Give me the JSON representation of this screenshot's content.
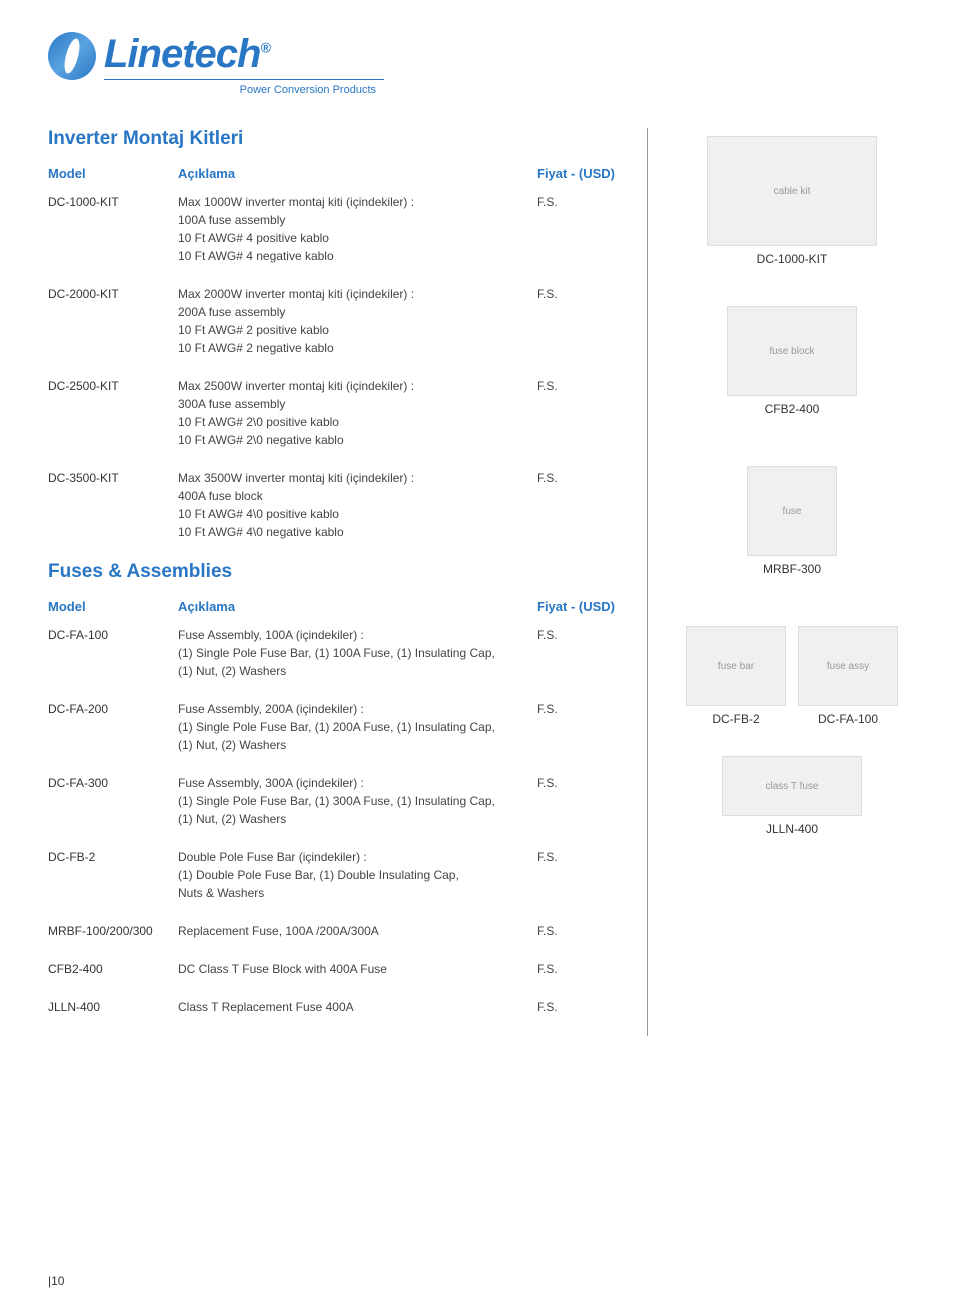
{
  "logo": {
    "name": "Linetech",
    "reg": "®",
    "tagline": "Power Conversion Products"
  },
  "section1": {
    "title": "Inverter Montaj Kitleri",
    "headers": {
      "model": "Model",
      "desc": "Açıklama",
      "price": "Fiyat - (USD)"
    },
    "rows": [
      {
        "model": "DC-1000-KIT",
        "desc": "Max 1000W inverter montaj kiti (içindekiler) :\n100A fuse assembly\n10 Ft AWG# 4 positive kablo\n10 Ft AWG# 4 negative kablo",
        "price": "F.S."
      },
      {
        "model": "DC-2000-KIT",
        "desc": "Max 2000W inverter montaj kiti (içindekiler) :\n200A fuse assembly\n10 Ft AWG# 2 positive kablo\n10 Ft AWG# 2 negative kablo",
        "price": "F.S."
      },
      {
        "model": "DC-2500-KIT",
        "desc": "Max 2500W inverter montaj kiti (içindekiler) :\n300A fuse assembly\n10 Ft AWG# 2\\0 positive kablo\n10 Ft AWG# 2\\0 negative kablo",
        "price": "F.S."
      },
      {
        "model": "DC-3500-KIT",
        "desc": "Max 3500W inverter montaj kiti (içindekiler) :\n400A fuse block\n10 Ft AWG# 4\\0 positive kablo\n10 Ft AWG# 4\\0 negative kablo",
        "price": "F.S."
      }
    ]
  },
  "section2": {
    "title": "Fuses & Assemblies",
    "headers": {
      "model": "Model",
      "desc": "Açıklama",
      "price": "Fiyat - (USD)"
    },
    "rows": [
      {
        "model": "DC-FA-100",
        "desc": "Fuse Assembly, 100A (içindekiler) :\n(1) Single Pole Fuse Bar, (1) 100A Fuse, (1) Insulating Cap,\n(1) Nut, (2) Washers",
        "price": "F.S."
      },
      {
        "model": "DC-FA-200",
        "desc": "Fuse Assembly, 200A (içindekiler) :\n(1) Single Pole Fuse Bar, (1) 200A Fuse, (1) Insulating Cap,\n(1) Nut, (2) Washers",
        "price": "F.S."
      },
      {
        "model": "DC-FA-300",
        "desc": "Fuse Assembly, 300A (içindekiler) :\n(1) Single Pole Fuse Bar, (1) 300A Fuse, (1) Insulating Cap,\n(1) Nut, (2) Washers",
        "price": "F.S."
      },
      {
        "model": "DC-FB-2",
        "desc": "Double Pole Fuse Bar (içindekiler) :\n(1) Double Pole Fuse Bar, (1) Double Insulating Cap,\nNuts & Washers",
        "price": "F.S."
      },
      {
        "model": "MRBF-100/200/300",
        "desc": "Replacement Fuse, 100A /200A/300A",
        "price": "F.S."
      },
      {
        "model": "CFB2-400",
        "desc": "DC Class T Fuse Block with 400A Fuse",
        "price": "F.S."
      },
      {
        "model": "JLLN-400",
        "desc": "Class T Replacement Fuse 400A",
        "price": "F.S."
      }
    ]
  },
  "side": [
    {
      "label": "DC-1000-KIT",
      "alt": "cable kit"
    },
    {
      "label": "CFB2-400",
      "alt": "fuse block"
    },
    {
      "label": "MRBF-300",
      "alt": "fuse"
    },
    {
      "label": "DC-FB-2",
      "alt": "fuse bar"
    },
    {
      "label": "DC-FA-100",
      "alt": "fuse assy"
    },
    {
      "label": "JLLN-400",
      "alt": "class T fuse"
    }
  ],
  "pagenum": "10"
}
